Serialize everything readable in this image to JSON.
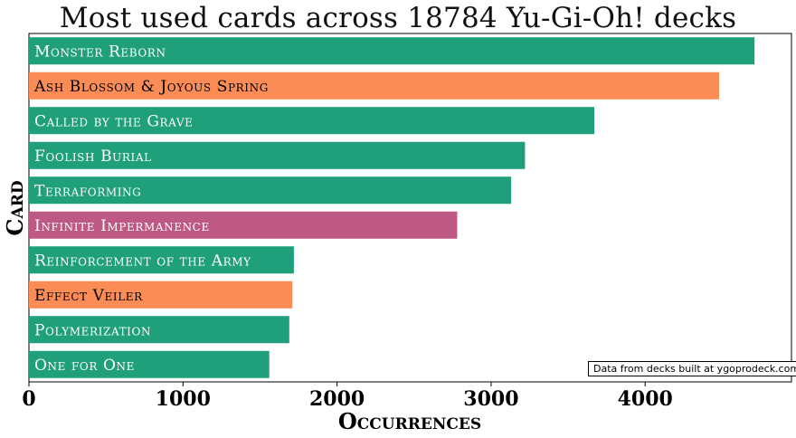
{
  "chart_data": {
    "type": "bar",
    "orientation": "horizontal",
    "title": "Most used cards across 18784 Yu-Gi-Oh! decks",
    "xlabel": "Occurrences",
    "ylabel": "Card",
    "xlim": [
      0,
      4950
    ],
    "xticks": [
      0,
      1000,
      2000,
      3000,
      4000
    ],
    "grid": false,
    "annotation": "Data from decks built at ygoprodeck.com",
    "categories": [
      "Monster Reborn",
      "Ash Blossom & Joyous Spring",
      "Called by the Grave",
      "Foolish Burial",
      "Terraforming",
      "Infinite Impermanence",
      "Reinforcement of the Army",
      "Effect Veiler",
      "Polymerization",
      "One for One"
    ],
    "values": [
      4710,
      4480,
      3670,
      3220,
      3130,
      2780,
      1720,
      1710,
      1690,
      1560
    ],
    "colors": [
      "#20a07a",
      "#fc8c56",
      "#20a07a",
      "#20a07a",
      "#20a07a",
      "#bd5982",
      "#20a07a",
      "#fc8c56",
      "#20a07a",
      "#20a07a"
    ],
    "label_colors": [
      "#ffffff",
      "#000000",
      "#ffffff",
      "#ffffff",
      "#ffffff",
      "#ffffff",
      "#ffffff",
      "#000000",
      "#ffffff",
      "#ffffff"
    ]
  }
}
